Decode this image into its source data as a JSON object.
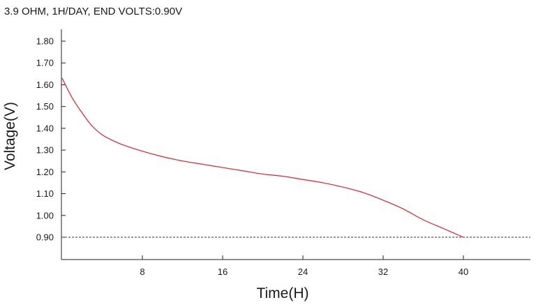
{
  "chart_data": {
    "type": "line",
    "title": "3.9 OHM, 1H/DAY, END VOLTS:0.90V",
    "xlabel": "Time(H)",
    "ylabel": "Voltage(V)",
    "xlim": [
      0,
      46
    ],
    "ylim": [
      0.8,
      1.85
    ],
    "x_ticks": [
      8,
      16,
      24,
      32,
      40
    ],
    "x_tick_labels": [
      "8",
      "16",
      "24",
      "32",
      "40"
    ],
    "y_ticks": [
      0.9,
      1.0,
      1.1,
      1.2,
      1.3,
      1.4,
      1.5,
      1.6,
      1.7,
      1.8
    ],
    "y_tick_labels": [
      "0.90",
      "1.00",
      "1.10",
      "1.20",
      "1.30",
      "1.40",
      "1.50",
      "1.60",
      "1.70",
      "1.80"
    ],
    "grid": false,
    "reference_line": {
      "y": 0.9,
      "style": "dashed",
      "color": "#333333"
    },
    "series": [
      {
        "color": "#e0202a",
        "x": [
          0,
          1,
          2,
          3,
          4,
          5,
          6,
          8,
          10,
          12,
          14,
          16,
          18,
          20,
          22,
          24,
          26,
          28,
          30,
          32,
          34,
          36,
          38,
          40
        ],
        "y": [
          1.63,
          1.54,
          1.47,
          1.41,
          1.37,
          1.345,
          1.325,
          1.295,
          1.27,
          1.25,
          1.235,
          1.22,
          1.205,
          1.19,
          1.18,
          1.165,
          1.15,
          1.13,
          1.105,
          1.07,
          1.03,
          0.98,
          0.94,
          0.9
        ]
      }
    ]
  }
}
